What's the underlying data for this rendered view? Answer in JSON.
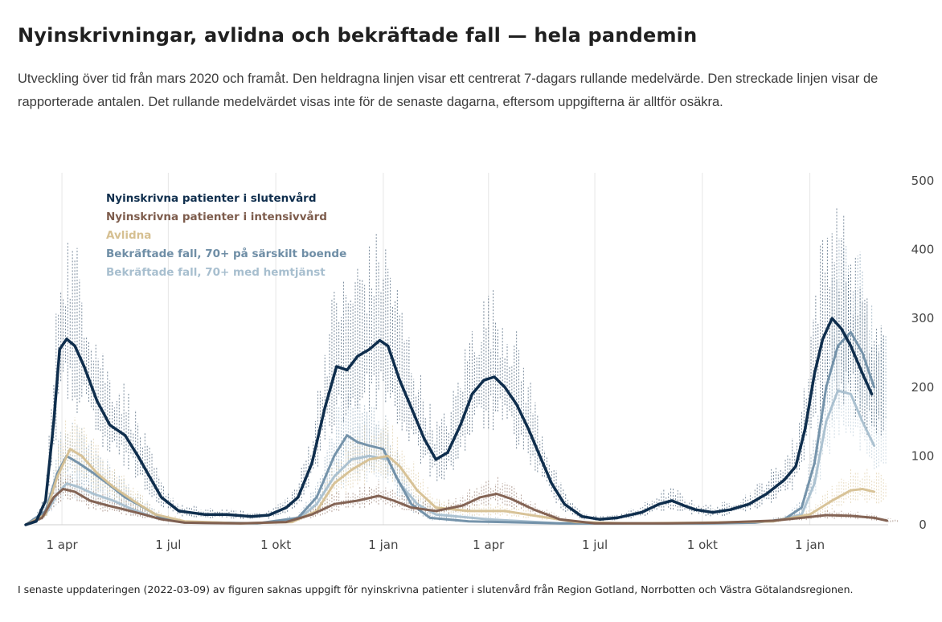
{
  "header": {
    "title": "Nyinskrivningar, avlidna och bekräftade fall — hela pandemin",
    "subtitle": "Utveckling över tid från mars 2020 och framåt. Den heldragna linjen visar ett centrerat 7-dagars rullande medelvärde. Den streckade linjen visar de rapporterade antalen. Det rullande medelvärdet visas inte för de senaste dagarna, eftersom uppgifterna är alltför osäkra."
  },
  "footnote": "I senaste uppdateringen (2022-03-09) av figuren saknas uppgift för nyinskrivna patienter i slutenvård från Region Gotland, Norrbotten och Västra Götalandsregionen.",
  "chart_data": {
    "type": "line",
    "x_axis": {
      "type": "date",
      "range": [
        "2020-03-01",
        "2022-03-09"
      ],
      "tick_dates": [
        "2020-04-01",
        "2020-07-01",
        "2020-10-01",
        "2021-01-01",
        "2021-04-01",
        "2021-07-01",
        "2021-10-01",
        "2022-01-01"
      ],
      "tick_labels": [
        "1 apr",
        "1 jul",
        "1 okt",
        "1 jan",
        "1 apr",
        "1 jul",
        "1 okt",
        "1 jan"
      ]
    },
    "y_axis": {
      "range": [
        0,
        500
      ],
      "ticks": [
        0,
        100,
        200,
        300,
        400,
        500
      ],
      "position": "right"
    },
    "grid": "vertical",
    "legend_position": "top-left",
    "series": [
      {
        "name": "Nyinskrivna patienter i slutenvård",
        "color": "#0f2e4d",
        "points": [
          [
            "2020-03-01",
            0
          ],
          [
            "2020-03-10",
            5
          ],
          [
            "2020-03-18",
            35
          ],
          [
            "2020-03-25",
            150
          ],
          [
            "2020-03-30",
            255
          ],
          [
            "2020-04-05",
            270
          ],
          [
            "2020-04-12",
            260
          ],
          [
            "2020-04-20",
            230
          ],
          [
            "2020-05-01",
            180
          ],
          [
            "2020-05-12",
            145
          ],
          [
            "2020-05-25",
            130
          ],
          [
            "2020-06-05",
            100
          ],
          [
            "2020-06-15",
            70
          ],
          [
            "2020-06-25",
            40
          ],
          [
            "2020-07-10",
            20
          ],
          [
            "2020-08-01",
            15
          ],
          [
            "2020-08-20",
            15
          ],
          [
            "2020-09-10",
            12
          ],
          [
            "2020-09-25",
            14
          ],
          [
            "2020-10-10",
            25
          ],
          [
            "2020-10-20",
            40
          ],
          [
            "2020-11-01",
            90
          ],
          [
            "2020-11-12",
            170
          ],
          [
            "2020-11-22",
            230
          ],
          [
            "2020-12-01",
            225
          ],
          [
            "2020-12-10",
            245
          ],
          [
            "2020-12-20",
            255
          ],
          [
            "2020-12-29",
            268
          ],
          [
            "2021-01-05",
            260
          ],
          [
            "2021-01-15",
            210
          ],
          [
            "2021-01-25",
            170
          ],
          [
            "2021-02-05",
            125
          ],
          [
            "2021-02-15",
            95
          ],
          [
            "2021-02-25",
            105
          ],
          [
            "2021-03-08",
            145
          ],
          [
            "2021-03-18",
            190
          ],
          [
            "2021-03-28",
            210
          ],
          [
            "2021-04-06",
            215
          ],
          [
            "2021-04-15",
            200
          ],
          [
            "2021-04-25",
            175
          ],
          [
            "2021-05-05",
            140
          ],
          [
            "2021-05-15",
            100
          ],
          [
            "2021-05-25",
            60
          ],
          [
            "2021-06-05",
            30
          ],
          [
            "2021-06-20",
            12
          ],
          [
            "2021-07-05",
            8
          ],
          [
            "2021-07-20",
            10
          ],
          [
            "2021-08-10",
            18
          ],
          [
            "2021-08-25",
            30
          ],
          [
            "2021-09-05",
            35
          ],
          [
            "2021-09-15",
            28
          ],
          [
            "2021-09-25",
            22
          ],
          [
            "2021-10-10",
            18
          ],
          [
            "2021-10-25",
            22
          ],
          [
            "2021-11-10",
            30
          ],
          [
            "2021-11-25",
            45
          ],
          [
            "2021-12-10",
            65
          ],
          [
            "2021-12-20",
            85
          ],
          [
            "2021-12-28",
            140
          ],
          [
            "2022-01-05",
            220
          ],
          [
            "2022-01-12",
            270
          ],
          [
            "2022-01-20",
            300
          ],
          [
            "2022-01-28",
            285
          ],
          [
            "2022-02-05",
            260
          ],
          [
            "2022-02-15",
            220
          ],
          [
            "2022-02-23",
            190
          ]
        ]
      },
      {
        "name": "Nyinskrivna patienter i intensivvård",
        "color": "#7d5c4c",
        "points": [
          [
            "2020-03-01",
            0
          ],
          [
            "2020-03-15",
            10
          ],
          [
            "2020-03-25",
            40
          ],
          [
            "2020-04-02",
            52
          ],
          [
            "2020-04-12",
            48
          ],
          [
            "2020-04-25",
            35
          ],
          [
            "2020-05-10",
            28
          ],
          [
            "2020-05-25",
            22
          ],
          [
            "2020-06-10",
            15
          ],
          [
            "2020-06-25",
            8
          ],
          [
            "2020-07-15",
            3
          ],
          [
            "2020-09-01",
            2
          ],
          [
            "2020-10-10",
            4
          ],
          [
            "2020-11-01",
            15
          ],
          [
            "2020-11-20",
            30
          ],
          [
            "2020-12-10",
            35
          ],
          [
            "2020-12-28",
            42
          ],
          [
            "2021-01-10",
            35
          ],
          [
            "2021-01-25",
            25
          ],
          [
            "2021-02-15",
            20
          ],
          [
            "2021-03-10",
            28
          ],
          [
            "2021-03-25",
            40
          ],
          [
            "2021-04-08",
            45
          ],
          [
            "2021-04-20",
            38
          ],
          [
            "2021-05-10",
            22
          ],
          [
            "2021-06-01",
            8
          ],
          [
            "2021-07-01",
            2
          ],
          [
            "2021-09-01",
            2
          ],
          [
            "2021-10-15",
            3
          ],
          [
            "2021-12-01",
            6
          ],
          [
            "2021-12-25",
            10
          ],
          [
            "2022-01-15",
            14
          ],
          [
            "2022-02-05",
            13
          ],
          [
            "2022-02-25",
            10
          ],
          [
            "2022-03-08",
            6
          ]
        ]
      },
      {
        "name": "Avlidna",
        "color": "#d6c092",
        "points": [
          [
            "2020-03-01",
            0
          ],
          [
            "2020-03-18",
            15
          ],
          [
            "2020-03-28",
            70
          ],
          [
            "2020-04-08",
            110
          ],
          [
            "2020-04-18",
            100
          ],
          [
            "2020-05-01",
            75
          ],
          [
            "2020-05-15",
            55
          ],
          [
            "2020-06-01",
            35
          ],
          [
            "2020-06-20",
            15
          ],
          [
            "2020-07-15",
            5
          ],
          [
            "2020-09-01",
            2
          ],
          [
            "2020-10-15",
            4
          ],
          [
            "2020-11-05",
            20
          ],
          [
            "2020-11-20",
            60
          ],
          [
            "2020-12-05",
            80
          ],
          [
            "2020-12-20",
            95
          ],
          [
            "2021-01-05",
            100
          ],
          [
            "2021-01-15",
            85
          ],
          [
            "2021-01-30",
            50
          ],
          [
            "2021-02-15",
            25
          ],
          [
            "2021-03-15",
            20
          ],
          [
            "2021-04-15",
            20
          ],
          [
            "2021-05-15",
            12
          ],
          [
            "2021-06-15",
            4
          ],
          [
            "2021-08-01",
            2
          ],
          [
            "2021-10-01",
            3
          ],
          [
            "2021-12-01",
            5
          ],
          [
            "2022-01-01",
            15
          ],
          [
            "2022-01-20",
            35
          ],
          [
            "2022-02-05",
            50
          ],
          [
            "2022-02-15",
            52
          ],
          [
            "2022-02-25",
            48
          ]
        ]
      },
      {
        "name": "Bekräftade fall, 70+ på särskilt boende",
        "color": "#6f8ea6",
        "points": [
          [
            "2020-03-01",
            0
          ],
          [
            "2020-03-18",
            20
          ],
          [
            "2020-03-28",
            75
          ],
          [
            "2020-04-05",
            100
          ],
          [
            "2020-04-15",
            90
          ],
          [
            "2020-04-28",
            75
          ],
          [
            "2020-05-10",
            60
          ],
          [
            "2020-05-25",
            40
          ],
          [
            "2020-06-10",
            25
          ],
          [
            "2020-06-25",
            10
          ],
          [
            "2020-07-15",
            4
          ],
          [
            "2020-09-15",
            2
          ],
          [
            "2020-10-20",
            10
          ],
          [
            "2020-11-05",
            40
          ],
          [
            "2020-11-20",
            100
          ],
          [
            "2020-12-01",
            130
          ],
          [
            "2020-12-10",
            120
          ],
          [
            "2020-12-20",
            115
          ],
          [
            "2021-01-01",
            110
          ],
          [
            "2021-01-12",
            70
          ],
          [
            "2021-01-25",
            30
          ],
          [
            "2021-02-10",
            10
          ],
          [
            "2021-03-15",
            5
          ],
          [
            "2021-06-01",
            2
          ],
          [
            "2021-10-01",
            2
          ],
          [
            "2021-11-15",
            3
          ],
          [
            "2021-12-10",
            8
          ],
          [
            "2021-12-25",
            25
          ],
          [
            "2022-01-05",
            90
          ],
          [
            "2022-01-15",
            200
          ],
          [
            "2022-01-25",
            260
          ],
          [
            "2022-02-05",
            280
          ],
          [
            "2022-02-15",
            250
          ],
          [
            "2022-02-25",
            200
          ]
        ]
      },
      {
        "name": "Bekräftade fall, 70+ med hemtjänst",
        "color": "#a8bfcf",
        "points": [
          [
            "2020-03-01",
            0
          ],
          [
            "2020-03-18",
            15
          ],
          [
            "2020-03-28",
            45
          ],
          [
            "2020-04-05",
            60
          ],
          [
            "2020-04-15",
            55
          ],
          [
            "2020-04-28",
            45
          ],
          [
            "2020-05-15",
            35
          ],
          [
            "2020-06-01",
            22
          ],
          [
            "2020-06-20",
            10
          ],
          [
            "2020-07-15",
            3
          ],
          [
            "2020-09-15",
            2
          ],
          [
            "2020-10-20",
            8
          ],
          [
            "2020-11-05",
            30
          ],
          [
            "2020-11-20",
            70
          ],
          [
            "2020-12-05",
            95
          ],
          [
            "2020-12-20",
            100
          ],
          [
            "2021-01-05",
            95
          ],
          [
            "2021-01-15",
            60
          ],
          [
            "2021-01-30",
            30
          ],
          [
            "2021-02-15",
            15
          ],
          [
            "2021-04-01",
            8
          ],
          [
            "2021-06-01",
            2
          ],
          [
            "2021-10-01",
            2
          ],
          [
            "2021-12-01",
            5
          ],
          [
            "2021-12-25",
            15
          ],
          [
            "2022-01-05",
            60
          ],
          [
            "2022-01-15",
            150
          ],
          [
            "2022-01-25",
            195
          ],
          [
            "2022-02-05",
            190
          ],
          [
            "2022-02-15",
            150
          ],
          [
            "2022-02-25",
            115
          ]
        ]
      }
    ]
  }
}
